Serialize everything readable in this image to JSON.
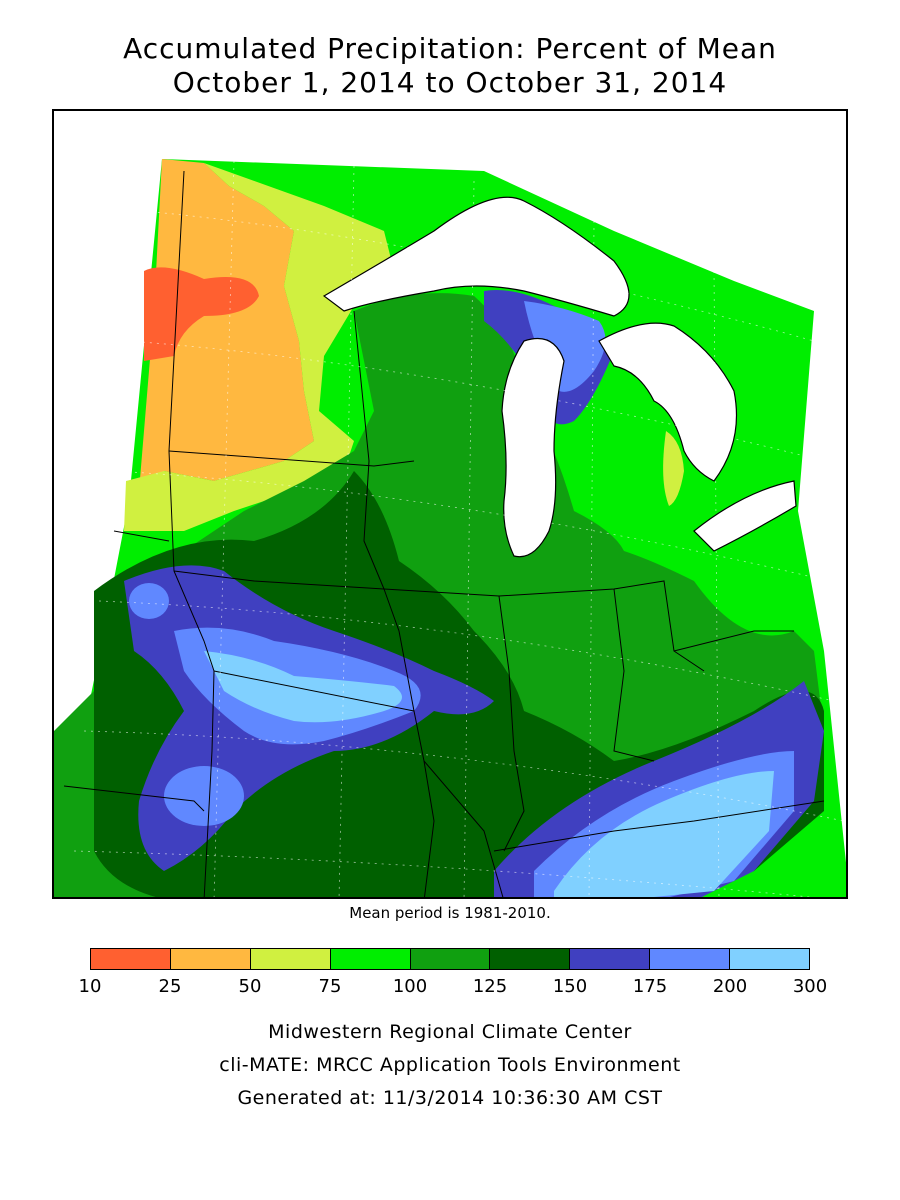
{
  "title": {
    "line1": "Accumulated Precipitation: Percent of Mean",
    "line2": "October 1, 2014 to October 31, 2014"
  },
  "map": {
    "region": "Midwestern United States",
    "water_color": "#ffffff",
    "boundary_color": "#000000"
  },
  "mean_note": "Mean period is 1981-2010.",
  "legend": {
    "ticks": [
      "10",
      "25",
      "50",
      "75",
      "100",
      "125",
      "150",
      "175",
      "200",
      "300"
    ],
    "colors": [
      "#ff6030",
      "#ffb840",
      "#d0f040",
      "#00ee00",
      "#10a010",
      "#006000",
      "#4040c0",
      "#6088ff",
      "#80d0ff"
    ]
  },
  "footer": {
    "line1": "Midwestern Regional Climate Center",
    "line2": "cli-MATE: MRCC Application Tools Environment",
    "line3": "Generated at: 11/3/2014 10:36:30 AM CST"
  }
}
